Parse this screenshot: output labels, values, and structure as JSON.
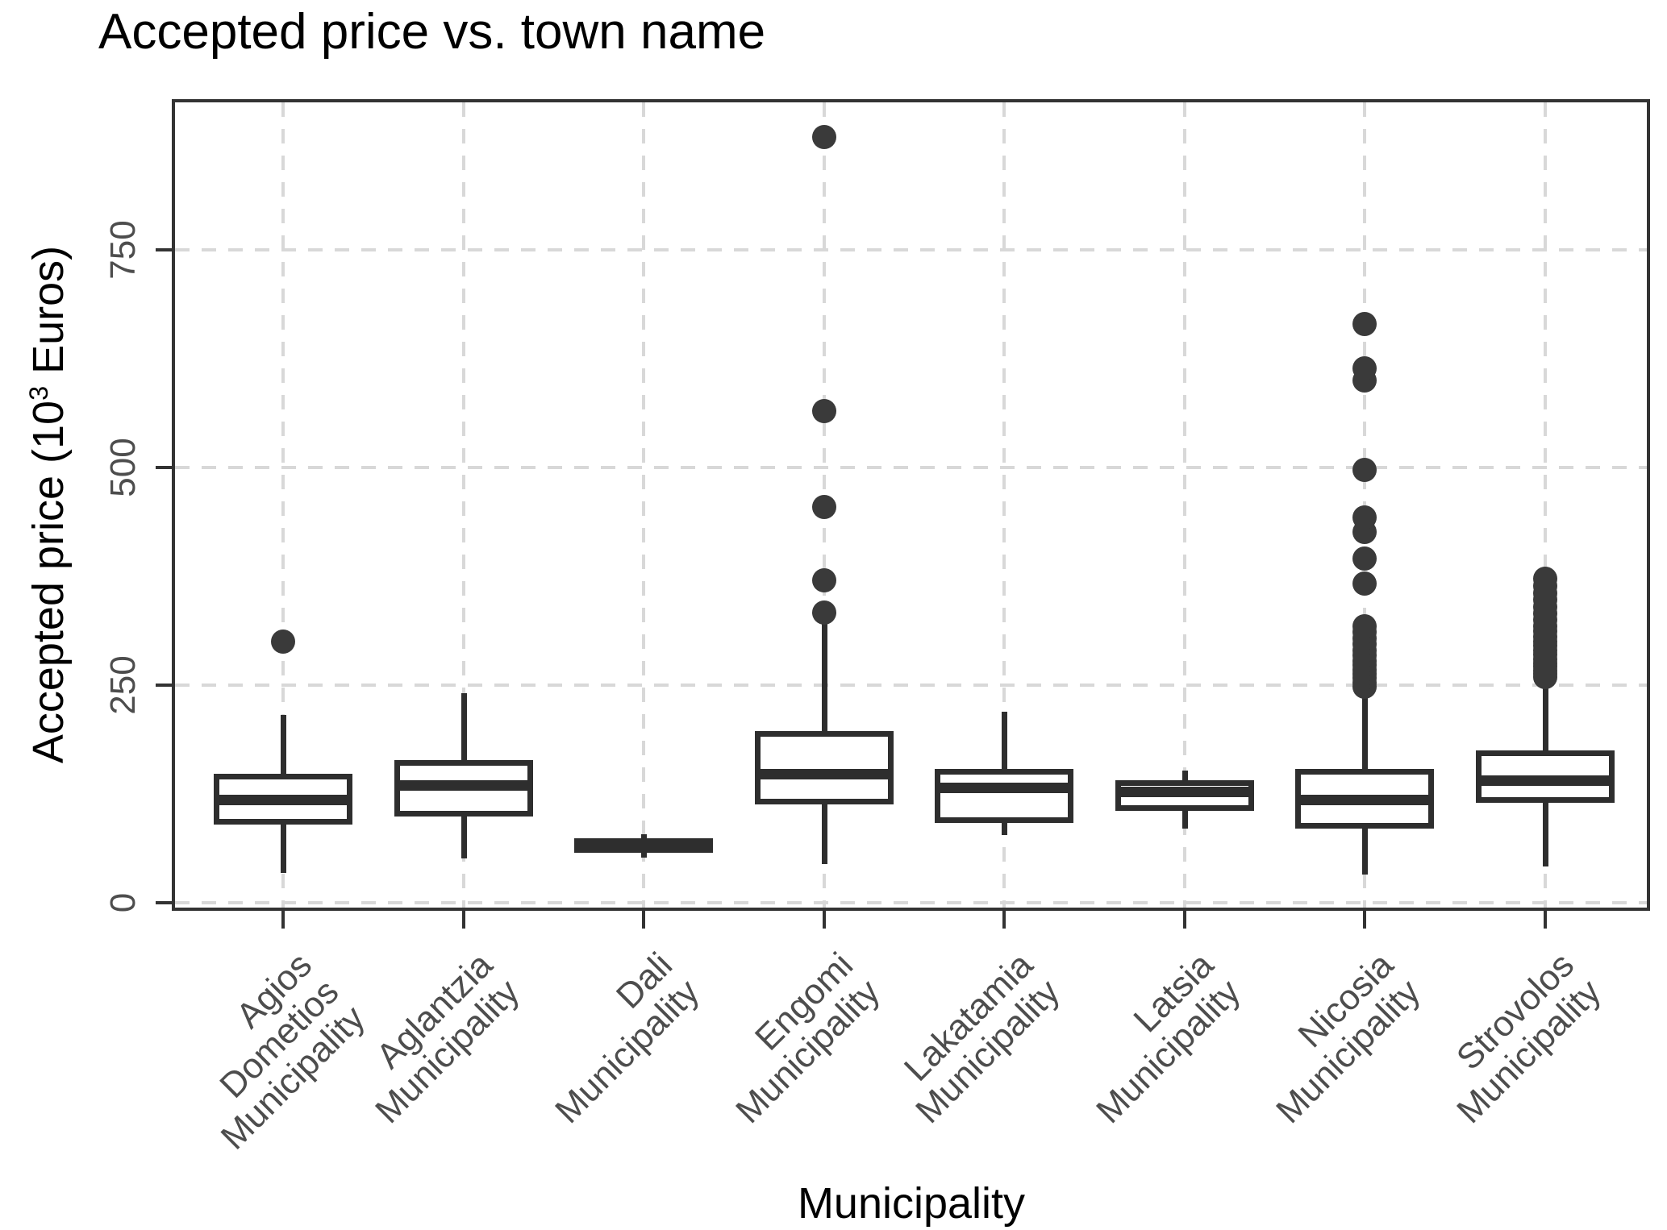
{
  "title": "Accepted price vs. town name",
  "y_axis": {
    "title_prefix": "Accepted price (10",
    "title_sup": "3",
    "title_suffix": " Euros)",
    "tick_labels": [
      "0",
      "250",
      "500",
      "750"
    ]
  },
  "x_axis": {
    "title": "Municipality"
  },
  "chart_data": {
    "type": "boxplot",
    "title": "Accepted price vs. town name",
    "xlabel": "Municipality",
    "ylabel": "Accepted price (10^3 Euros)",
    "ylim": [
      -9,
      923
    ],
    "yticks": [
      0,
      250,
      500,
      750
    ],
    "grid": "dashed-both-directions",
    "legend": "none",
    "categories": [
      "Agios Dometios Municipality",
      "Aglantzia Municipality",
      "Dali Municipality",
      "Engomi Municipality",
      "Lakatamia Municipality",
      "Latsia Municipality",
      "Nicosia Municipality",
      "Strovolos Municipality"
    ],
    "category_label_lines": [
      [
        "Agios",
        "Dometios",
        "Municipality"
      ],
      [
        "Aglantzia",
        "Municipality"
      ],
      [
        "Dali",
        "Municipality"
      ],
      [
        "Engomi",
        "Municipality"
      ],
      [
        "Lakatamia",
        "Municipality"
      ],
      [
        "Latsia",
        "Municipality"
      ],
      [
        "Nicosia",
        "Municipality"
      ],
      [
        "Strovolos",
        "Municipality"
      ]
    ],
    "series": [
      {
        "name": "Agios Dometios Municipality",
        "whisker_low": 34,
        "q1": 90,
        "median": 118,
        "q3": 148,
        "whisker_high": 216,
        "outliers": [
          300
        ]
      },
      {
        "name": "Aglantzia Municipality",
        "whisker_low": 51,
        "q1": 99,
        "median": 135,
        "q3": 164,
        "whisker_high": 241,
        "outliers": []
      },
      {
        "name": "Dali Municipality",
        "whisker_low": 52,
        "q1": 57,
        "median": 65,
        "q3": 74,
        "whisker_high": 79,
        "outliers": []
      },
      {
        "name": "Engomi Municipality",
        "whisker_low": 44,
        "q1": 113,
        "median": 148,
        "q3": 197,
        "whisker_high": 320,
        "outliers": [
          333,
          370,
          455,
          565,
          880
        ]
      },
      {
        "name": "Lakatamia Municipality",
        "whisker_low": 78,
        "q1": 92,
        "median": 132,
        "q3": 154,
        "whisker_high": 219,
        "outliers": []
      },
      {
        "name": "Latsia Municipality",
        "whisker_low": 85,
        "q1": 106,
        "median": 127,
        "q3": 141,
        "whisker_high": 152,
        "outliers": []
      },
      {
        "name": "Nicosia Municipality",
        "whisker_low": 32,
        "q1": 85,
        "median": 118,
        "q3": 154,
        "whisker_high": 240,
        "outliers": [
          248,
          253,
          258,
          263,
          268,
          273,
          278,
          284,
          290,
          297,
          304,
          311,
          318,
          367,
          395,
          426,
          443,
          497,
          600,
          614,
          665
        ]
      },
      {
        "name": "Strovolos Municipality",
        "whisker_low": 42,
        "q1": 115,
        "median": 140,
        "q3": 175,
        "whisker_high": 255,
        "outliers": [
          259,
          263,
          267,
          271,
          275,
          280,
          285,
          290,
          295,
          300,
          306,
          312,
          318,
          325,
          332,
          340,
          348,
          356,
          364,
          372
        ]
      }
    ],
    "colors": {
      "box_border": "#2e2e2e",
      "box_fill": "#ffffff",
      "outlier": "#3a3a3a",
      "gridline": "#d8d8d8",
      "tick_label_text": "#4d4d4d",
      "title_text": "#000000",
      "plot_border": "#333333"
    }
  }
}
